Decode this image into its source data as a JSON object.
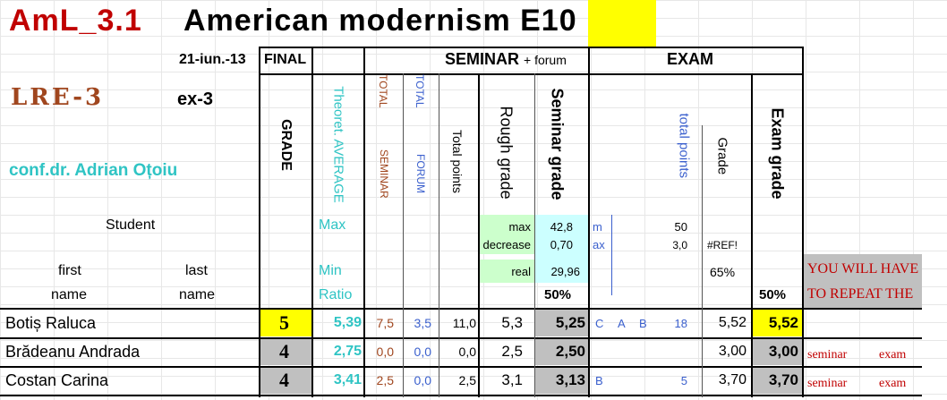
{
  "header": {
    "code": "AmL_3.1",
    "title": "American modernism E10",
    "date": "21-iun.-13",
    "final": "FINAL",
    "seminar_main": "SEMINAR",
    "seminar_sub": "+ forum",
    "exam": "EXAM",
    "lre": "LRE-3",
    "ex": "ex-3",
    "teacher": "conf.dr. Adrian Oțoiu",
    "student": "Student",
    "first": "first",
    "last": "last",
    "name1": "name",
    "name2": "name"
  },
  "columns": {
    "grade": "GRADE",
    "theoret": "Theoret. AVERAGE",
    "total_seminar_a": "TOTAL",
    "total_seminar_b": "SEMINAR",
    "total_forum_a": "TOTAL",
    "total_forum_b": "FORUM",
    "total_points": "Total points",
    "rough_grade": "Rough grade",
    "seminar_grade": "Seminar grade",
    "exam_total_points": "total points",
    "exam_grade_small": "Grade",
    "exam_grade": "Exam grade"
  },
  "params": {
    "max": "Max",
    "min": "Min",
    "ratio": "Ratio",
    "max_label": "max",
    "max_value": "42,8",
    "decrease_label": "decrease",
    "decrease_value": "0,70",
    "real_label": "real",
    "real_value": "29,96",
    "m": "m",
    "ax": "ax",
    "exam_max": "50",
    "exam_decrease": "3,0",
    "ref": "#REF!",
    "pct65": "65%",
    "pct50_sem": "50%",
    "pct50_exam": "50%",
    "warning1": "YOU WILL HAVE",
    "warning2": "TO REPEAT THE"
  },
  "rows": [
    {
      "name": "Botiș Raluca",
      "grade": "5",
      "avg": "5,39",
      "tot_sem": "7,5",
      "tot_forum": "3,5",
      "total": "11,0",
      "rough": "5,3",
      "sem_grade": "5,25",
      "c1": "C",
      "c2": "A",
      "c3": "B",
      "exam_pts": "18",
      "exam_g": "5,52",
      "exam_grade": "5,52",
      "w1": "",
      "w2": ""
    },
    {
      "name": "Brădeanu Andrada",
      "grade": "4",
      "avg": "2,75",
      "tot_sem": "0,0",
      "tot_forum": "0,0",
      "total": "0,0",
      "rough": "2,5",
      "sem_grade": "2,50",
      "c1": "",
      "c2": "",
      "c3": "",
      "exam_pts": "",
      "exam_g": "3,00",
      "exam_grade": "3,00",
      "w1": "seminar",
      "w2": "exam"
    },
    {
      "name": "Costan Carina",
      "grade": "4",
      "avg": "3,41",
      "tot_sem": "2,5",
      "tot_forum": "0,0",
      "total": "2,5",
      "rough": "3,1",
      "sem_grade": "3,13",
      "c1": "B",
      "c2": "",
      "c3": "",
      "exam_pts": "5",
      "exam_g": "3,70",
      "exam_grade": "3,70",
      "w1": "seminar",
      "w2": "exam"
    }
  ],
  "colors": {
    "yellow": "#ffff00",
    "gray": "#c0c0c0",
    "lightgreen": "#ccffcc",
    "lightcyan": "#ccffff",
    "red": "#c00000"
  }
}
